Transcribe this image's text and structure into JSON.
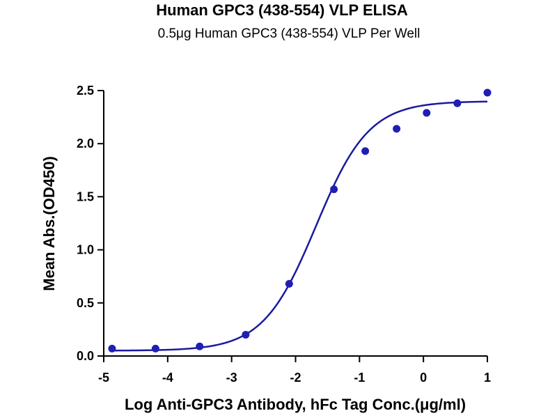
{
  "chart_data": {
    "type": "scatter",
    "title": "Human GPC3 (438-554) VLP ELISA",
    "subtitle": "0.5μg Human GPC3 (438-554) VLP Per Well",
    "xlabel": "Log Anti-GPC3 Antibody, hFc Tag Conc.(μg/ml)",
    "ylabel": "Mean Abs.(OD450)",
    "xlim": [
      -5,
      1
    ],
    "ylim": [
      0,
      2.5
    ],
    "xticks": [
      "-5",
      "-4",
      "-3",
      "-2",
      "-1",
      "0",
      "1"
    ],
    "yticks": [
      "0.0",
      "0.5",
      "1.0",
      "1.5",
      "2.0",
      "2.5"
    ],
    "grid": false,
    "color": "#1f1fb4",
    "curve_color": "#1a1a9e",
    "series": [
      {
        "x": [
          -4.87,
          -4.19,
          -3.5,
          -2.78,
          -2.1,
          -1.4,
          -0.91,
          -0.42,
          0.05,
          0.53,
          1.0
        ],
        "y": [
          0.07,
          0.07,
          0.09,
          0.2,
          0.68,
          1.57,
          1.93,
          2.14,
          2.29,
          2.38,
          2.48
        ]
      }
    ],
    "fit": {
      "model": "4PL",
      "bottom": 0.05,
      "top": 2.4,
      "logEC50": -1.68,
      "hill": 1.05
    }
  }
}
